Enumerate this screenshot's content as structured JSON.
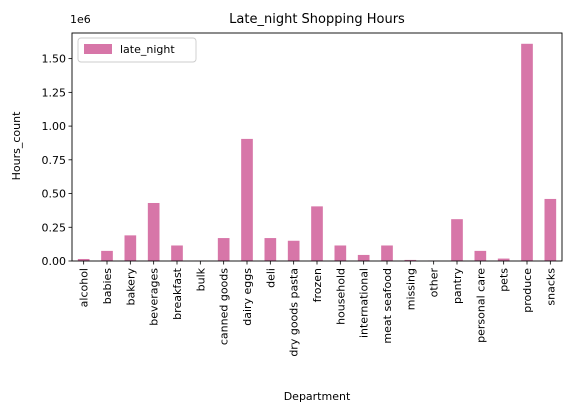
{
  "chart_data": {
    "type": "bar",
    "title": "Late_night Shopping Hours",
    "xlabel": "Department",
    "ylabel": "Hours_count",
    "y_offset_label": "1e6",
    "ylim": [
      0,
      1.69
    ],
    "yticks": [
      0.0,
      0.25,
      0.5,
      0.75,
      1.0,
      1.25,
      1.5
    ],
    "ytick_labels": [
      "0.00",
      "0.25",
      "0.50",
      "0.75",
      "1.00",
      "1.25",
      "1.50"
    ],
    "grid": false,
    "legend_position": "top-left",
    "bar_color": "#d776a8",
    "categories": [
      "alcohol",
      "babies",
      "bakery",
      "beverages",
      "breakfast",
      "bulk",
      "canned goods",
      "dairy eggs",
      "deli",
      "dry goods pasta",
      "frozen",
      "household",
      "international",
      "meat seafood",
      "missing",
      "other",
      "pantry",
      "personal care",
      "pets",
      "produce",
      "snacks"
    ],
    "series": [
      {
        "name": "late_night",
        "values": [
          0.015,
          0.075,
          0.19,
          0.43,
          0.115,
          0.002,
          0.17,
          0.905,
          0.17,
          0.15,
          0.405,
          0.115,
          0.045,
          0.115,
          0.008,
          0.003,
          0.31,
          0.075,
          0.018,
          1.61,
          0.46
        ]
      }
    ]
  }
}
